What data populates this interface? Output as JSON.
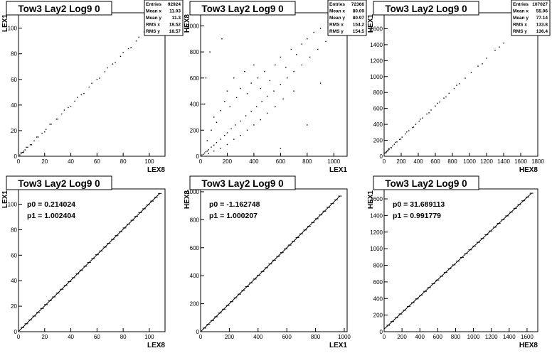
{
  "colors": {
    "background": "#ffffff",
    "ink": "#000000"
  },
  "chart_data": [
    {
      "type": "scatter",
      "title": "Tow3 Lay2 Log9 0",
      "xlabel": "LEX8",
      "ylabel": "LEX1",
      "xlim": [
        0,
        112
      ],
      "ylim": [
        0,
        112
      ],
      "xticks": [
        0,
        20,
        40,
        60,
        80,
        100
      ],
      "yticks": [
        0,
        20,
        40,
        60,
        80,
        100
      ],
      "stats": [
        {
          "label": "Entries",
          "value": "92924"
        },
        {
          "label": "Mean x",
          "value": "11.03"
        },
        {
          "label": "Mean y",
          "value": "11.3"
        },
        {
          "label": "RMS x",
          "value": "18.52"
        },
        {
          "label": "RMS y",
          "value": "18.57"
        }
      ],
      "points": [
        [
          1,
          1
        ],
        [
          2,
          2
        ],
        [
          3,
          3
        ],
        [
          4,
          4
        ],
        [
          5,
          5
        ],
        [
          7,
          7
        ],
        [
          9,
          9
        ],
        [
          12,
          12
        ],
        [
          15,
          15
        ],
        [
          18,
          18
        ],
        [
          21,
          21
        ],
        [
          25,
          25
        ],
        [
          29,
          29
        ],
        [
          33,
          33
        ],
        [
          38,
          38
        ],
        [
          43,
          43
        ],
        [
          48,
          48
        ],
        [
          54,
          54
        ],
        [
          60,
          60
        ],
        [
          66,
          66
        ],
        [
          72,
          72
        ],
        [
          78,
          78
        ],
        [
          84,
          84
        ],
        [
          90,
          90
        ],
        [
          96,
          97
        ],
        [
          100,
          101
        ],
        [
          104,
          105
        ],
        [
          2,
          3
        ],
        [
          4,
          3
        ],
        [
          6,
          7
        ],
        [
          10,
          9
        ],
        [
          14,
          15
        ],
        [
          20,
          19
        ],
        [
          24,
          25
        ],
        [
          30,
          29
        ],
        [
          35,
          36
        ],
        [
          40,
          39
        ],
        [
          45,
          46
        ],
        [
          50,
          49
        ],
        [
          56,
          57
        ],
        [
          62,
          61
        ],
        [
          68,
          69
        ],
        [
          74,
          73
        ],
        [
          80,
          81
        ],
        [
          86,
          85
        ],
        [
          92,
          93
        ],
        [
          98,
          99
        ],
        [
          103,
          104
        ]
      ]
    },
    {
      "type": "scatter",
      "title": "Tow3 Lay2 Log9 0",
      "xlabel": "LEX1",
      "ylabel": "HEX8",
      "xlim": [
        0,
        1100
      ],
      "ylim": [
        0,
        1100
      ],
      "xticks": [
        0,
        200,
        400,
        600,
        800,
        1000
      ],
      "yticks": [
        0,
        200,
        400,
        600,
        800,
        1000
      ],
      "stats": [
        {
          "label": "Entries",
          "value": "72366"
        },
        {
          "label": "Mean x",
          "value": "80.09"
        },
        {
          "label": "Mean y",
          "value": "80.97"
        },
        {
          "label": "RMS x",
          "value": "154.2"
        },
        {
          "label": "RMS y",
          "value": "154.5"
        }
      ],
      "points": [
        [
          10,
          10
        ],
        [
          20,
          15
        ],
        [
          30,
          25
        ],
        [
          40,
          35
        ],
        [
          50,
          40
        ],
        [
          60,
          50
        ],
        [
          80,
          70
        ],
        [
          100,
          85
        ],
        [
          120,
          105
        ],
        [
          150,
          130
        ],
        [
          180,
          160
        ],
        [
          200,
          180
        ],
        [
          230,
          210
        ],
        [
          260,
          240
        ],
        [
          300,
          270
        ],
        [
          340,
          310
        ],
        [
          380,
          345
        ],
        [
          420,
          380
        ],
        [
          460,
          420
        ],
        [
          500,
          460
        ],
        [
          550,
          500
        ],
        [
          600,
          550
        ],
        [
          650,
          600
        ],
        [
          700,
          650
        ],
        [
          760,
          700
        ],
        [
          820,
          760
        ],
        [
          880,
          820
        ],
        [
          940,
          880
        ],
        [
          1000,
          950
        ],
        [
          50,
          120
        ],
        [
          80,
          200
        ],
        [
          100,
          300
        ],
        [
          120,
          260
        ],
        [
          150,
          350
        ],
        [
          180,
          420
        ],
        [
          200,
          500
        ],
        [
          220,
          380
        ],
        [
          250,
          600
        ],
        [
          270,
          450
        ],
        [
          300,
          520
        ],
        [
          330,
          650
        ],
        [
          350,
          480
        ],
        [
          380,
          560
        ],
        [
          400,
          700
        ],
        [
          430,
          600
        ],
        [
          450,
          520
        ],
        [
          480,
          650
        ],
        [
          520,
          580
        ],
        [
          560,
          700
        ],
        [
          600,
          760
        ],
        [
          640,
          680
        ],
        [
          680,
          820
        ],
        [
          720,
          780
        ],
        [
          760,
          860
        ],
        [
          800,
          900
        ],
        [
          850,
          950
        ],
        [
          900,
          980
        ],
        [
          60,
          20
        ],
        [
          100,
          40
        ],
        [
          150,
          60
        ],
        [
          200,
          90
        ],
        [
          250,
          130
        ],
        [
          300,
          160
        ],
        [
          350,
          200
        ],
        [
          400,
          240
        ],
        [
          450,
          280
        ],
        [
          500,
          330
        ],
        [
          560,
          380
        ],
        [
          620,
          440
        ],
        [
          700,
          500
        ],
        [
          40,
          600
        ],
        [
          70,
          800
        ],
        [
          160,
          900
        ],
        [
          30,
          400
        ],
        [
          600,
          60
        ],
        [
          800,
          240
        ],
        [
          900,
          560
        ]
      ]
    },
    {
      "type": "scatter",
      "title": "Tow3 Lay2 Log9 0",
      "xlabel": "HEX8",
      "ylabel": "HEX1",
      "xlim": [
        0,
        1800
      ],
      "ylim": [
        0,
        1800
      ],
      "xticks": [
        0,
        200,
        400,
        600,
        800,
        1000,
        1200,
        1400,
        1600,
        1800
      ],
      "yticks": [
        0,
        200,
        400,
        600,
        800,
        1000,
        1200,
        1400,
        1600
      ],
      "stats": [
        {
          "label": "Entries",
          "value": "107027"
        },
        {
          "label": "Mean x",
          "value": "55.06"
        },
        {
          "label": "Mean y",
          "value": "77.14"
        },
        {
          "label": "RMS x",
          "value": "133.8"
        },
        {
          "label": "RMS y",
          "value": "136.4"
        }
      ],
      "points": [
        [
          10,
          40
        ],
        [
          20,
          50
        ],
        [
          30,
          60
        ],
        [
          40,
          70
        ],
        [
          50,
          80
        ],
        [
          60,
          90
        ],
        [
          80,
          110
        ],
        [
          100,
          130
        ],
        [
          120,
          150
        ],
        [
          150,
          180
        ],
        [
          180,
          210
        ],
        [
          210,
          240
        ],
        [
          250,
          280
        ],
        [
          290,
          320
        ],
        [
          330,
          360
        ],
        [
          370,
          400
        ],
        [
          410,
          440
        ],
        [
          450,
          480
        ],
        [
          500,
          530
        ],
        [
          550,
          580
        ],
        [
          600,
          630
        ],
        [
          650,
          680
        ],
        [
          700,
          730
        ],
        [
          760,
          790
        ],
        [
          820,
          850
        ],
        [
          880,
          910
        ],
        [
          950,
          980
        ],
        [
          1020,
          1050
        ],
        [
          1100,
          1130
        ],
        [
          1200,
          1230
        ],
        [
          1300,
          1330
        ],
        [
          1400,
          1420
        ],
        [
          25,
          45
        ],
        [
          55,
          95
        ],
        [
          85,
          105
        ],
        [
          135,
          175
        ],
        [
          195,
          215
        ],
        [
          265,
          305
        ],
        [
          345,
          365
        ],
        [
          425,
          465
        ],
        [
          525,
          545
        ],
        [
          625,
          665
        ],
        [
          725,
          745
        ],
        [
          850,
          890
        ],
        [
          1150,
          1160
        ],
        [
          1350,
          1370
        ]
      ]
    },
    {
      "type": "line",
      "title": "Tow3 Lay2 Log9 0",
      "xlabel": "LEX8",
      "ylabel": "LEX1",
      "xlim": [
        0,
        112
      ],
      "ylim": [
        0,
        112
      ],
      "xticks": [
        0,
        20,
        40,
        60,
        80,
        100
      ],
      "yticks": [
        0,
        20,
        40,
        60,
        80,
        100
      ],
      "fit": [
        {
          "label": "p0",
          "value": "0.214024"
        },
        {
          "label": "p1",
          "value": "1.002404"
        }
      ],
      "x": [
        0,
        108
      ],
      "y": [
        0.214024,
        108.47
      ]
    },
    {
      "type": "line",
      "title": "Tow3 Lay2 Log9 0",
      "xlabel": "LEX1",
      "ylabel": "HEX8",
      "xlim": [
        0,
        1020
      ],
      "ylim": [
        0,
        1020
      ],
      "xticks": [
        0,
        200,
        400,
        600,
        800,
        1000
      ],
      "yticks": [
        0,
        200,
        400,
        600,
        800,
        1000
      ],
      "fit": [
        {
          "label": "p0",
          "value": "-1.162748"
        },
        {
          "label": "p1",
          "value": "1.000207"
        }
      ],
      "x": [
        0,
        970
      ],
      "y": [
        -1.16,
        969
      ]
    },
    {
      "type": "line",
      "title": "Tow3 Lay2 Log9 0",
      "xlabel": "HEX8",
      "ylabel": "HEX1",
      "xlim": [
        0,
        1720
      ],
      "ylim": [
        0,
        1720
      ],
      "xticks": [
        0,
        200,
        400,
        600,
        800,
        1000,
        1200,
        1400,
        1600
      ],
      "yticks": [
        0,
        200,
        400,
        600,
        800,
        1000,
        1200,
        1400,
        1600
      ],
      "fit": [
        {
          "label": "p0",
          "value": "31.689113"
        },
        {
          "label": "p1",
          "value": "0.991779"
        }
      ],
      "x": [
        0,
        1650
      ],
      "y": [
        31.69,
        1668
      ]
    }
  ]
}
